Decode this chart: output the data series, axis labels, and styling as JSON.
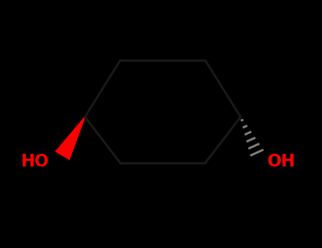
{
  "background_color": "#000000",
  "bond_color": "#1a1a1a",
  "oh_color": "#ff0000",
  "stereo_wedge_color": "#ff0000",
  "stereo_hash_color": "#808080",
  "figsize": [
    4.55,
    3.5
  ],
  "dpi": 100,
  "bond_lw": 2.2,
  "font_size": 17
}
